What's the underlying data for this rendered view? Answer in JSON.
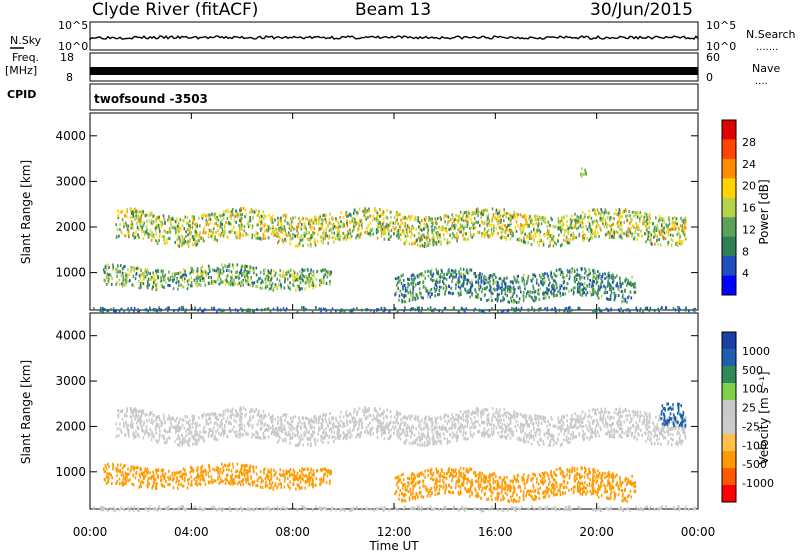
{
  "header": {
    "station": "Clyde River (fitACF)",
    "beam": "Beam 13",
    "date": "30/Jun/2015"
  },
  "status_panel": {
    "nsky_label": "N.Sky",
    "nsearch_label": "N.Search",
    "nsearch_dots": ".......",
    "noise_ticks": [
      "10^5",
      "10^0"
    ],
    "freq_label": "Freq.",
    "freq_unit": "[MHz]",
    "freq_ticks": [
      "18",
      "8"
    ],
    "nave_label": "Nave",
    "nave_dots": "....",
    "nave_ticks": [
      "60",
      "0"
    ],
    "cpid_label": "CPID",
    "cpid_value": "twofsound  -3503"
  },
  "colors": {
    "power_bar": [
      "#0000ff",
      "#1f4fbf",
      "#2d7f55",
      "#5aa25a",
      "#b6d447",
      "#ffd400",
      "#ff8c00",
      "#ff4500",
      "#e00000"
    ],
    "velocity_bar": [
      "#ff0000",
      "#ff5a00",
      "#ff9a00",
      "#ffc04d",
      "#cccccc",
      "#c8c8c8",
      "#7fd14a",
      "#2e8b57",
      "#1f5faf",
      "#1a3fa8"
    ]
  },
  "chart_data": [
    {
      "type": "heatmap",
      "title": "",
      "xlabel": "",
      "ylabel": "Slant Range [km]",
      "x_ticks": [
        "00:00",
        "04:00",
        "08:00",
        "12:00",
        "16:00",
        "20:00",
        "00:00"
      ],
      "xlim_hours": [
        0,
        24
      ],
      "y_ticks": [
        "1000",
        "2000",
        "3000",
        "4000"
      ],
      "ylim": [
        180,
        4500
      ],
      "grid": false,
      "colorbar": {
        "label": "Power [dB]",
        "ticks": [
          "4",
          "8",
          "12",
          "16",
          "20",
          "24",
          "28"
        ],
        "range": [
          0,
          30
        ]
      },
      "echo_bands": [
        {
          "time_h": [
            1.0,
            23.5
          ],
          "range_km": [
            1700,
            2350
          ],
          "power_db": [
            8,
            22
          ]
        },
        {
          "time_h": [
            0.5,
            9.5
          ],
          "range_km": [
            700,
            1150
          ],
          "power_db": [
            6,
            18
          ]
        },
        {
          "time_h": [
            12.0,
            21.5
          ],
          "range_km": [
            450,
            1050
          ],
          "power_db": [
            4,
            14
          ]
        },
        {
          "time_h": [
            0.0,
            24.0
          ],
          "range_km": [
            180,
            260
          ],
          "power_db": [
            4,
            10
          ]
        },
        {
          "time_h": [
            19.3,
            19.6
          ],
          "range_km": [
            3150,
            3350
          ],
          "power_db": [
            10,
            16
          ]
        }
      ]
    },
    {
      "type": "heatmap",
      "title": "",
      "xlabel": "Time UT",
      "ylabel": "Slant Range [km]",
      "x_ticks": [
        "00:00",
        "04:00",
        "08:00",
        "12:00",
        "16:00",
        "20:00",
        "00:00"
      ],
      "xlim_hours": [
        0,
        24
      ],
      "y_ticks": [
        "1000",
        "2000",
        "3000",
        "4000"
      ],
      "ylim": [
        180,
        4500
      ],
      "grid": false,
      "colorbar": {
        "label": "Velocity [m s⁻¹]",
        "ticks": [
          "1000",
          "500",
          "100",
          "25",
          "-25",
          "-100",
          "-500",
          "-1000"
        ],
        "range": [
          -1000,
          1000
        ]
      },
      "echo_bands": [
        {
          "time_h": [
            1.0,
            23.5
          ],
          "range_km": [
            1700,
            2350
          ],
          "velocity": [
            -25,
            25
          ]
        },
        {
          "time_h": [
            0.5,
            9.5
          ],
          "range_km": [
            700,
            1150
          ],
          "velocity": [
            -400,
            -100
          ]
        },
        {
          "time_h": [
            12.0,
            21.5
          ],
          "range_km": [
            450,
            1050
          ],
          "velocity": [
            -500,
            -100
          ]
        },
        {
          "time_h": [
            0.0,
            24.0
          ],
          "range_km": [
            180,
            260
          ],
          "velocity": [
            -25,
            25
          ]
        },
        {
          "time_h": [
            22.5,
            23.5
          ],
          "range_km": [
            2000,
            2500
          ],
          "velocity": [
            500,
            1000
          ]
        }
      ]
    }
  ]
}
